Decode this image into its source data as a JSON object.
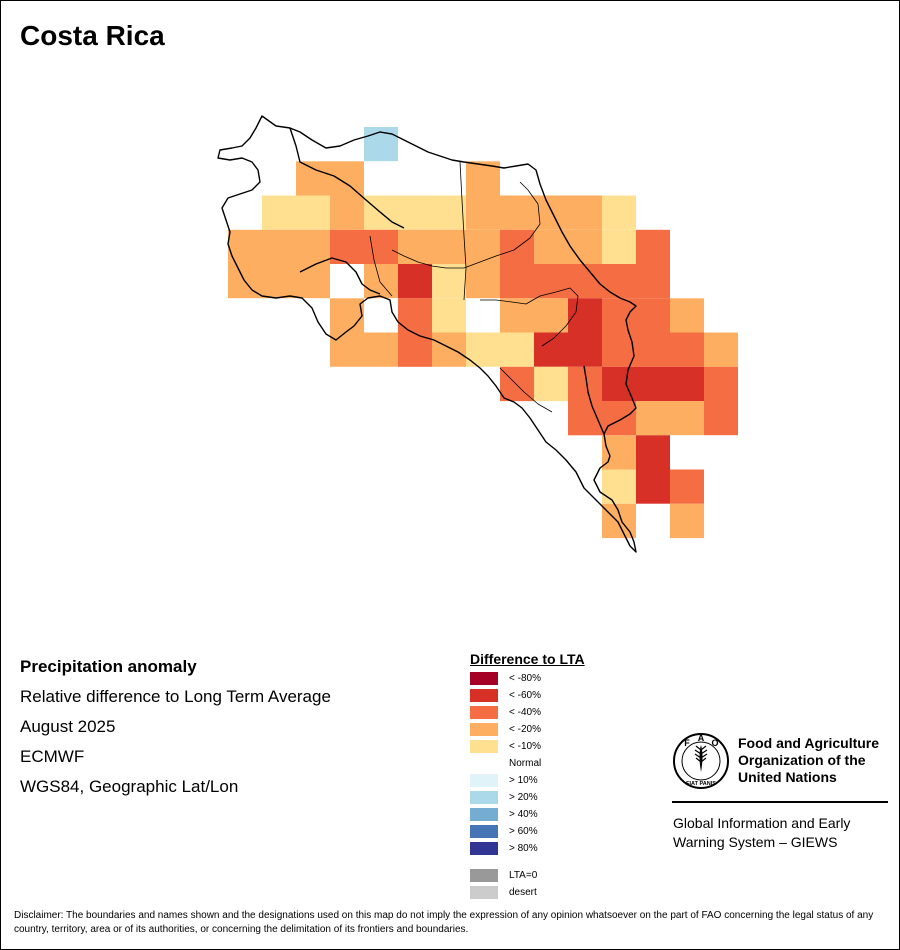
{
  "map": {
    "title": "Costa Rica",
    "cell_lon_step_deg": 0.25,
    "cells": [
      {
        "lon": -85.0,
        "lat": 11.25,
        "class": "> 20%"
      },
      {
        "lon": -85.5,
        "lat": 11.0,
        "class": "< -20%"
      },
      {
        "lon": -85.25,
        "lat": 11.0,
        "class": "< -20%"
      },
      {
        "lon": -85.0,
        "lat": 11.0,
        "class": "Normal"
      },
      {
        "lon": -84.75,
        "lat": 11.0,
        "class": "Normal"
      },
      {
        "lon": -84.5,
        "lat": 11.0,
        "class": "Normal"
      },
      {
        "lon": -84.25,
        "lat": 11.0,
        "class": "< -20%"
      },
      {
        "lon": -85.75,
        "lat": 10.75,
        "class": "< -10%"
      },
      {
        "lon": -85.5,
        "lat": 10.75,
        "class": "< -10%"
      },
      {
        "lon": -85.25,
        "lat": 10.75,
        "class": "< -20%"
      },
      {
        "lon": -85.0,
        "lat": 10.75,
        "class": "< -10%"
      },
      {
        "lon": -84.75,
        "lat": 10.75,
        "class": "< -10%"
      },
      {
        "lon": -84.5,
        "lat": 10.75,
        "class": "< -10%"
      },
      {
        "lon": -84.25,
        "lat": 10.75,
        "class": "< -20%"
      },
      {
        "lon": -84.0,
        "lat": 10.75,
        "class": "< -20%"
      },
      {
        "lon": -83.75,
        "lat": 10.75,
        "class": "< -20%"
      },
      {
        "lon": -83.5,
        "lat": 10.75,
        "class": "< -20%"
      },
      {
        "lon": -83.25,
        "lat": 10.75,
        "class": "< -10%"
      },
      {
        "lon": -86.0,
        "lat": 10.5,
        "class": "< -20%"
      },
      {
        "lon": -85.75,
        "lat": 10.5,
        "class": "< -20%"
      },
      {
        "lon": -85.5,
        "lat": 10.5,
        "class": "< -20%"
      },
      {
        "lon": -85.25,
        "lat": 10.5,
        "class": "< -40%"
      },
      {
        "lon": -85.0,
        "lat": 10.5,
        "class": "< -40%"
      },
      {
        "lon": -84.75,
        "lat": 10.5,
        "class": "< -20%"
      },
      {
        "lon": -84.5,
        "lat": 10.5,
        "class": "< -20%"
      },
      {
        "lon": -84.25,
        "lat": 10.5,
        "class": "< -20%"
      },
      {
        "lon": -84.0,
        "lat": 10.5,
        "class": "< -40%"
      },
      {
        "lon": -83.75,
        "lat": 10.5,
        "class": "< -20%"
      },
      {
        "lon": -83.5,
        "lat": 10.5,
        "class": "< -20%"
      },
      {
        "lon": -83.25,
        "lat": 10.5,
        "class": "< -10%"
      },
      {
        "lon": -83.0,
        "lat": 10.5,
        "class": "< -40%"
      },
      {
        "lon": -86.0,
        "lat": 10.25,
        "class": "< -20%"
      },
      {
        "lon": -85.75,
        "lat": 10.25,
        "class": "< -20%"
      },
      {
        "lon": -85.5,
        "lat": 10.25,
        "class": "< -20%"
      },
      {
        "lon": -85.25,
        "lat": 10.25,
        "class": "Normal"
      },
      {
        "lon": -85.0,
        "lat": 10.25,
        "class": "< -20%"
      },
      {
        "lon": -84.75,
        "lat": 10.25,
        "class": "< -60%"
      },
      {
        "lon": -84.5,
        "lat": 10.25,
        "class": "< -10%"
      },
      {
        "lon": -84.25,
        "lat": 10.25,
        "class": "< -20%"
      },
      {
        "lon": -84.0,
        "lat": 10.25,
        "class": "< -40%"
      },
      {
        "lon": -83.75,
        "lat": 10.25,
        "class": "< -40%"
      },
      {
        "lon": -83.5,
        "lat": 10.25,
        "class": "< -40%"
      },
      {
        "lon": -83.25,
        "lat": 10.25,
        "class": "< -40%"
      },
      {
        "lon": -83.0,
        "lat": 10.25,
        "class": "< -40%"
      },
      {
        "lon": -86.0,
        "lat": 10.0,
        "class": "Normal"
      },
      {
        "lon": -85.75,
        "lat": 10.0,
        "class": "Normal"
      },
      {
        "lon": -85.5,
        "lat": 10.0,
        "class": "Normal"
      },
      {
        "lon": -85.25,
        "lat": 10.0,
        "class": "< -20%"
      },
      {
        "lon": -85.0,
        "lat": 10.0,
        "class": "Normal"
      },
      {
        "lon": -84.75,
        "lat": 10.0,
        "class": "< -40%"
      },
      {
        "lon": -84.5,
        "lat": 10.0,
        "class": "< -10%"
      },
      {
        "lon": -84.25,
        "lat": 10.0,
        "class": "Normal"
      },
      {
        "lon": -84.0,
        "lat": 10.0,
        "class": "< -20%"
      },
      {
        "lon": -83.75,
        "lat": 10.0,
        "class": "< -20%"
      },
      {
        "lon": -83.5,
        "lat": 10.0,
        "class": "< -60%"
      },
      {
        "lon": -83.25,
        "lat": 10.0,
        "class": "< -40%"
      },
      {
        "lon": -83.0,
        "lat": 10.0,
        "class": "< -40%"
      },
      {
        "lon": -82.75,
        "lat": 10.0,
        "class": "< -20%"
      },
      {
        "lon": -85.25,
        "lat": 9.75,
        "class": "< -20%"
      },
      {
        "lon": -85.0,
        "lat": 9.75,
        "class": "< -20%"
      },
      {
        "lon": -84.75,
        "lat": 9.75,
        "class": "< -40%"
      },
      {
        "lon": -84.5,
        "lat": 9.75,
        "class": "< -20%"
      },
      {
        "lon": -84.25,
        "lat": 9.75,
        "class": "< -10%"
      },
      {
        "lon": -84.0,
        "lat": 9.75,
        "class": "< -10%"
      },
      {
        "lon": -83.75,
        "lat": 9.75,
        "class": "< -60%"
      },
      {
        "lon": -83.5,
        "lat": 9.75,
        "class": "< -60%"
      },
      {
        "lon": -83.25,
        "lat": 9.75,
        "class": "< -40%"
      },
      {
        "lon": -83.0,
        "lat": 9.75,
        "class": "< -40%"
      },
      {
        "lon": -82.75,
        "lat": 9.75,
        "class": "< -40%"
      },
      {
        "lon": -82.5,
        "lat": 9.75,
        "class": "< -20%"
      },
      {
        "lon": -84.0,
        "lat": 9.5,
        "class": "< -40%"
      },
      {
        "lon": -83.75,
        "lat": 9.5,
        "class": "< -10%"
      },
      {
        "lon": -83.5,
        "lat": 9.5,
        "class": "< -40%"
      },
      {
        "lon": -83.25,
        "lat": 9.5,
        "class": "< -60%"
      },
      {
        "lon": -83.0,
        "lat": 9.5,
        "class": "< -60%"
      },
      {
        "lon": -82.75,
        "lat": 9.5,
        "class": "< -60%"
      },
      {
        "lon": -82.5,
        "lat": 9.5,
        "class": "< -40%"
      },
      {
        "lon": -83.5,
        "lat": 9.25,
        "class": "< -40%"
      },
      {
        "lon": -83.25,
        "lat": 9.25,
        "class": "< -40%"
      },
      {
        "lon": -83.0,
        "lat": 9.25,
        "class": "< -20%"
      },
      {
        "lon": -82.75,
        "lat": 9.25,
        "class": "< -20%"
      },
      {
        "lon": -82.5,
        "lat": 9.25,
        "class": "< -40%"
      },
      {
        "lon": -83.25,
        "lat": 9.0,
        "class": "< -20%"
      },
      {
        "lon": -83.0,
        "lat": 9.0,
        "class": "< -60%"
      },
      {
        "lon": -82.75,
        "lat": 9.0,
        "class": "Normal"
      },
      {
        "lon": -82.5,
        "lat": 9.0,
        "class": "Normal"
      },
      {
        "lon": -83.25,
        "lat": 8.75,
        "class": "< -10%"
      },
      {
        "lon": -83.0,
        "lat": 8.75,
        "class": "< -60%"
      },
      {
        "lon": -82.75,
        "lat": 8.75,
        "class": "< -40%"
      },
      {
        "lon": -83.25,
        "lat": 8.5,
        "class": "< -20%"
      },
      {
        "lon": -83.0,
        "lat": 8.5,
        "class": "Normal"
      },
      {
        "lon": -82.75,
        "lat": 8.5,
        "class": "< -20%"
      }
    ]
  },
  "info": {
    "heading": "Precipitation anomaly",
    "subtitle": "Relative difference to Long Term Average",
    "period": "August 2025",
    "source": "ECMWF",
    "projection": "WGS84, Geographic Lat/Lon"
  },
  "legend": {
    "title": "Difference to LTA",
    "items": [
      {
        "label": "< -80%",
        "color": "#a50026"
      },
      {
        "label": "< -60%",
        "color": "#d73027"
      },
      {
        "label": "< -40%",
        "color": "#f46d43"
      },
      {
        "label": "< -20%",
        "color": "#fdae61"
      },
      {
        "label": "< -10%",
        "color": "#fee090"
      },
      {
        "label": "Normal",
        "color": "#ffffff"
      },
      {
        "label": "> 10%",
        "color": "#e0f3f8"
      },
      {
        "label": "> 20%",
        "color": "#abd9e9"
      },
      {
        "label": "> 40%",
        "color": "#74add1"
      },
      {
        "label": "> 60%",
        "color": "#4575b4"
      },
      {
        "label": "> 80%",
        "color": "#313695"
      }
    ],
    "extra": [
      {
        "label": "LTA=0",
        "color": "#999999"
      },
      {
        "label": "desert",
        "color": "#cccccc"
      }
    ]
  },
  "fao": {
    "logo_icon": "fao-emblem-icon",
    "logo_letters": [
      "F",
      "A",
      "O"
    ],
    "logo_motto": "FIAT PANIS",
    "name_lines": [
      "Food and Agriculture",
      "Organization of the",
      "United Nations"
    ],
    "giews_lines": [
      "Global Information and Early",
      "Warning System – GIEWS"
    ]
  },
  "disclaimer": "Disclaimer: The boundaries and names shown and the designations used on this map do not imply the expression of any opinion whatsoever on the part of FAO concerning the legal status of any country, territory, area or of its authorities, or concerning the delimitation of its frontiers and boundaries."
}
